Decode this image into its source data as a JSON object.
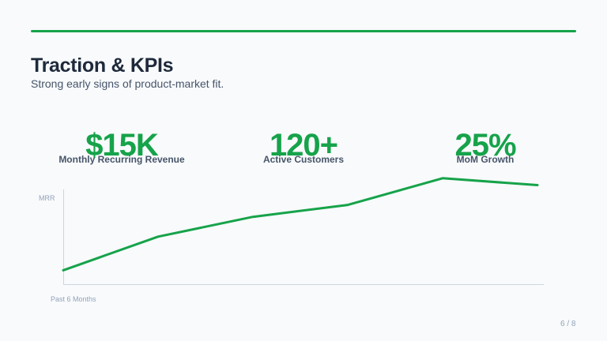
{
  "slide": {
    "title": "Traction & KPIs",
    "subtitle": "Strong early signs of product-market fit.",
    "page": "6 / 8",
    "accent_color": "#16a34a"
  },
  "kpis": [
    {
      "value": "$15K",
      "label": "Monthly Recurring Revenue"
    },
    {
      "value": "120+",
      "label": "Active Customers"
    },
    {
      "value": "25%",
      "label": "MoM Growth"
    }
  ],
  "chart_data": {
    "type": "line",
    "title": "",
    "xlabel": "Past 6 Months",
    "ylabel": "MRR",
    "x": [
      1,
      2,
      3,
      4,
      5,
      6
    ],
    "series": [
      {
        "name": "MRR",
        "values": [
          14,
          48,
          68,
          80,
          107,
          100
        ],
        "color": "#16a34a"
      }
    ],
    "ylim": [
      0,
      110
    ],
    "grid": false,
    "legend": "none",
    "note": "Relative values estimated from pixel positions; no axis ticks shown"
  }
}
